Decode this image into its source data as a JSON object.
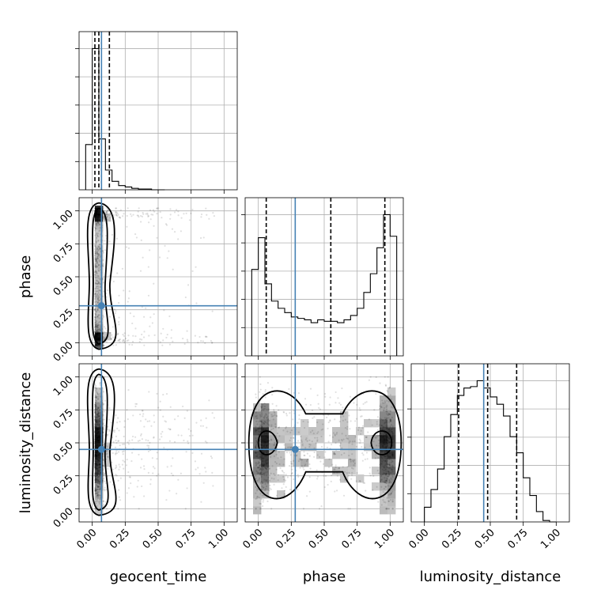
{
  "chart_data": {
    "type": "corner",
    "parameters": [
      "geocent_time",
      "phase",
      "luminosity_distance"
    ],
    "tick_labels": [
      "0.00",
      "0.25",
      "0.50",
      "0.75",
      "1.00"
    ],
    "axis_range": [
      -0.1,
      1.1
    ],
    "truth_values": {
      "geocent_time": 0.07,
      "phase": 0.28,
      "luminosity_distance": 0.45
    },
    "quantiles": {
      "geocent_time": [
        0.02,
        0.05,
        0.13
      ],
      "phase": [
        0.06,
        0.55,
        0.96
      ],
      "luminosity_distance": [
        0.26,
        0.48,
        0.7
      ]
    },
    "histograms": {
      "geocent_time": {
        "bin_width": 0.05,
        "start": -0.05,
        "values": [
          0.32,
          1.0,
          0.36,
          0.14,
          0.06,
          0.03,
          0.02,
          0.01,
          0.005,
          0.005,
          0.0,
          0.0
        ]
      },
      "phase": {
        "bin_width": 0.05,
        "start": -0.05,
        "values": [
          0.6,
          0.82,
          0.5,
          0.38,
          0.33,
          0.3,
          0.27,
          0.26,
          0.25,
          0.23,
          0.25,
          0.24,
          0.24,
          0.23,
          0.25,
          0.28,
          0.33,
          0.44,
          0.57,
          0.75,
          0.98,
          0.83
        ]
      },
      "luminosity_distance": {
        "bin_width": 0.05,
        "start": 0.0,
        "values": [
          0.1,
          0.22,
          0.36,
          0.58,
          0.73,
          0.86,
          0.91,
          0.92,
          0.96,
          0.91,
          0.85,
          0.8,
          0.72,
          0.58,
          0.47,
          0.3,
          0.18,
          0.07,
          0.01,
          0.0
        ]
      }
    },
    "grid": true
  }
}
